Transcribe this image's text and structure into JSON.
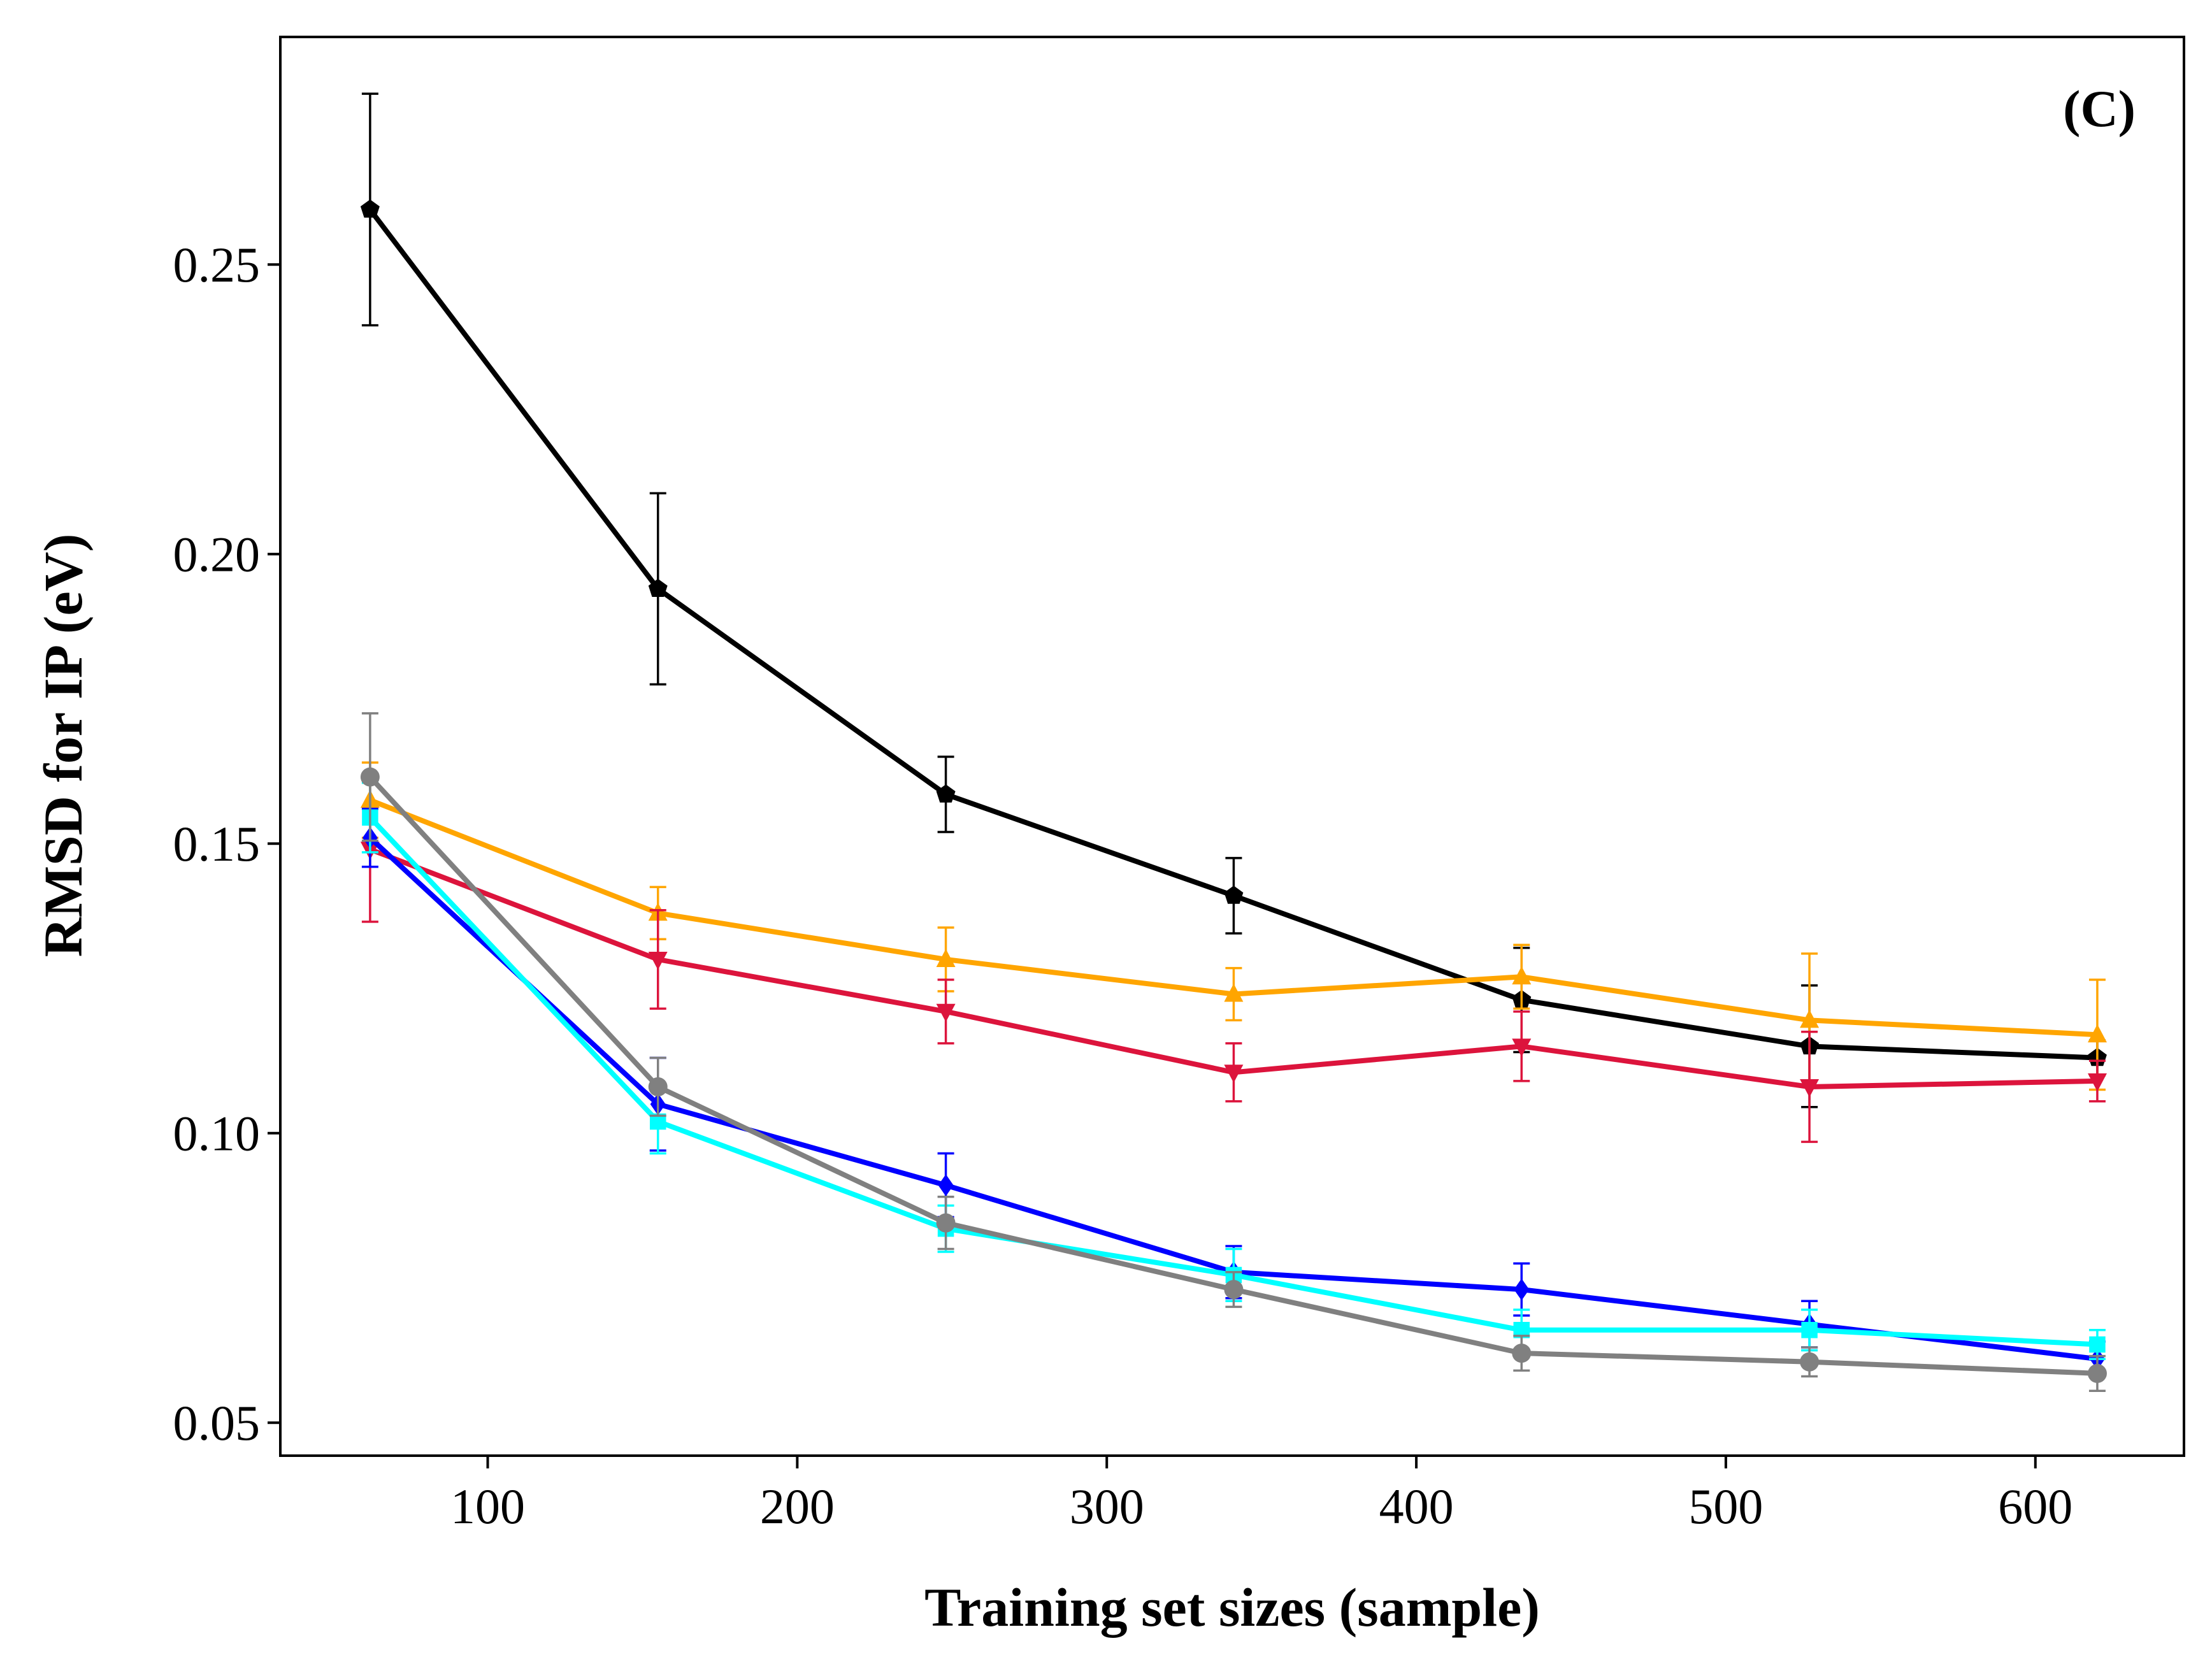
{
  "chart_data": {
    "type": "line",
    "panel_label": "(C)",
    "xlabel": "Training set sizes (sample)",
    "ylabel": "RMSD for IP (eV)",
    "xlim": [
      33,
      648
    ],
    "ylim": [
      0.0443,
      0.2893
    ],
    "xticks": [
      100,
      200,
      300,
      400,
      500,
      600
    ],
    "yticks": [
      0.05,
      0.1,
      0.15,
      0.2,
      0.25
    ],
    "xtick_labels": [
      "100",
      "200",
      "300",
      "400",
      "500",
      "600"
    ],
    "ytick_labels": [
      "0.05",
      "0.10",
      "0.15",
      "0.20",
      "0.25"
    ],
    "grid": false,
    "legend": "none",
    "x": [
      62,
      155,
      248,
      341,
      434,
      527,
      620
    ],
    "series": [
      {
        "color": "#000000",
        "marker": "pentagon",
        "values": [
          0.2595,
          0.194,
          0.1585,
          0.141,
          0.123,
          0.115,
          0.113
        ],
        "errors": [
          0.02,
          0.0165,
          0.0065,
          0.0065,
          0.009,
          0.0105,
          0.003
        ]
      },
      {
        "color": "#ffa500",
        "marker": "triangle-up",
        "values": [
          0.1575,
          0.138,
          0.13,
          0.124,
          0.127,
          0.1195,
          0.117
        ],
        "errors": [
          0.0065,
          0.0045,
          0.0055,
          0.0045,
          0.0055,
          0.0115,
          0.0095
        ]
      },
      {
        "color": "#dc143c",
        "marker": "triangle-down",
        "values": [
          0.149,
          0.13,
          0.121,
          0.1105,
          0.115,
          0.108,
          0.109
        ],
        "errors": [
          0.0125,
          0.0085,
          0.0055,
          0.005,
          0.006,
          0.0095,
          0.0035
        ]
      },
      {
        "color": "#0000ff",
        "marker": "diamond",
        "values": [
          0.151,
          0.105,
          0.091,
          0.076,
          0.073,
          0.067,
          0.061
        ],
        "errors": [
          0.005,
          0.008,
          0.0055,
          0.0045,
          0.0045,
          0.004,
          0.003
        ]
      },
      {
        "color": "#00ffff",
        "marker": "square",
        "values": [
          0.1545,
          0.102,
          0.0835,
          0.0755,
          0.066,
          0.066,
          0.0635
        ],
        "errors": [
          0.006,
          0.0055,
          0.004,
          0.0045,
          0.0035,
          0.0035,
          0.0025
        ]
      },
      {
        "color": "#808080",
        "marker": "circle",
        "values": [
          0.1615,
          0.108,
          0.0845,
          0.073,
          0.062,
          0.0605,
          0.0585
        ],
        "errors": [
          0.011,
          0.005,
          0.0045,
          0.003,
          0.003,
          0.0025,
          0.003
        ]
      }
    ]
  }
}
